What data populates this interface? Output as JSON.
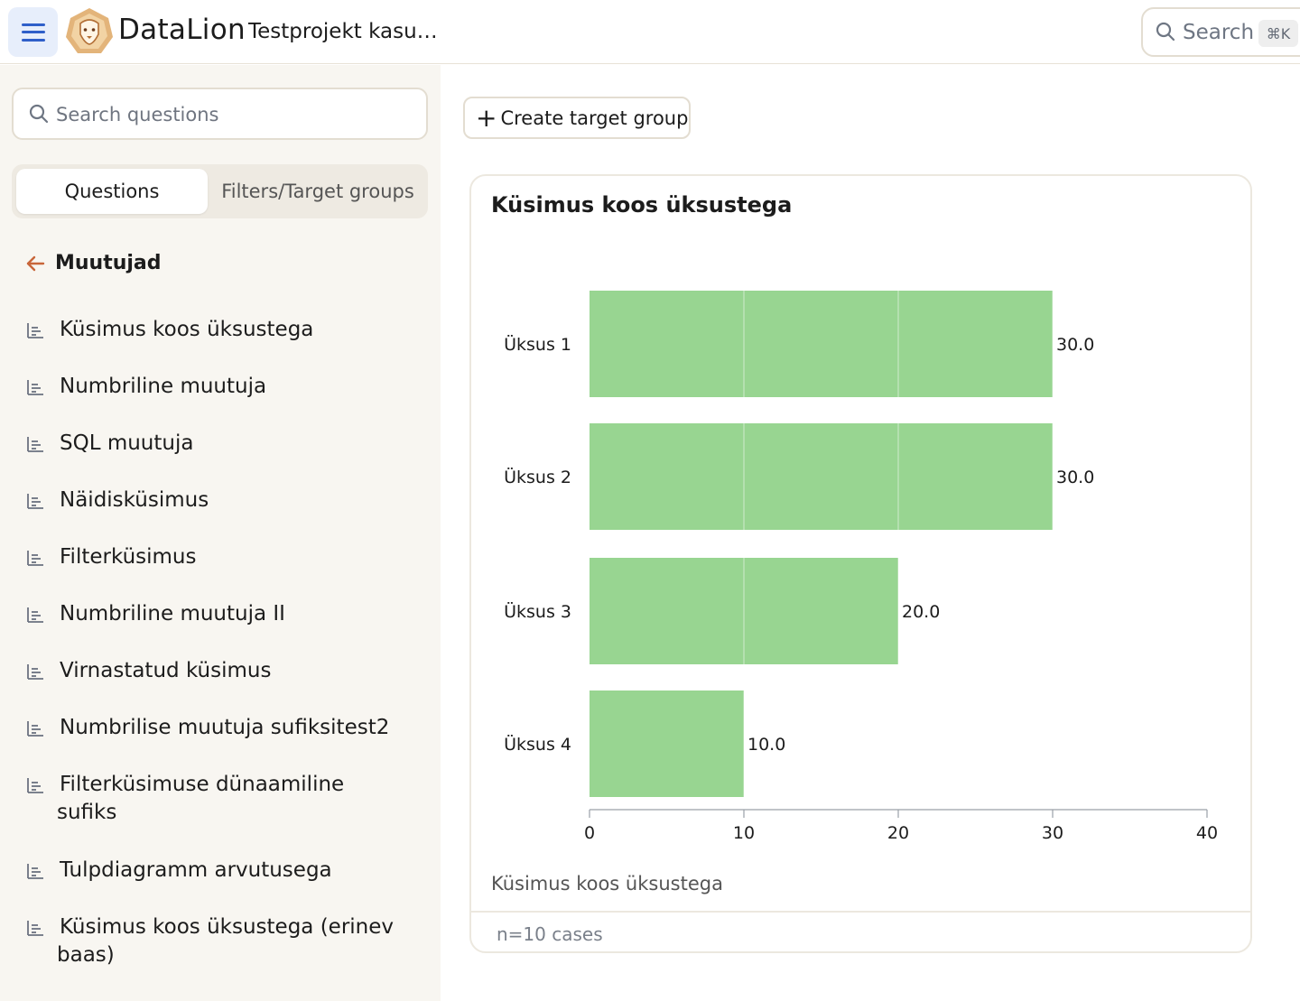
{
  "header": {
    "brand": "DataLion",
    "project": "Testprojekt kasu…",
    "search_label": "Search",
    "search_shortcut": "⌘K"
  },
  "sidebar": {
    "search_placeholder": "Search questions",
    "tabs": [
      {
        "label": "Questions",
        "active": true
      },
      {
        "label": "Filters/Target groups",
        "active": false
      }
    ],
    "section_title": "Muutujad",
    "questions": [
      {
        "line1": "Küsimus koos üksustega",
        "line2": ""
      },
      {
        "line1": "Numbriline muutuja",
        "line2": ""
      },
      {
        "line1": "SQL muutuja",
        "line2": ""
      },
      {
        "line1": "Näidisküsimus",
        "line2": ""
      },
      {
        "line1": "Filterküsimus",
        "line2": ""
      },
      {
        "line1": "Numbriline muutuja II",
        "line2": ""
      },
      {
        "line1": "Virnastatud küsimus",
        "line2": ""
      },
      {
        "line1": "Numbrilise muutuja sufiksitest2",
        "line2": ""
      },
      {
        "line1": "Filterküsimuse dünaamiline",
        "line2": "sufiks"
      },
      {
        "line1": "Tulpdiagramm arvutusega",
        "line2": ""
      },
      {
        "line1": "Küsimus koos üksustega (erinev",
        "line2": "baas)"
      }
    ]
  },
  "main": {
    "create_button": "Create target group",
    "card_title": "Küsimus koos üksustega",
    "caption": "Küsimus koos üksustega",
    "footer": "n=10 cases"
  },
  "colors": {
    "bar": "#98d591",
    "accent": "#2f5fc9",
    "back_arrow": "#c8663a"
  },
  "chart_data": {
    "type": "bar",
    "orientation": "horizontal",
    "title": "Küsimus koos üksustega",
    "categories": [
      "Üksus 1",
      "Üksus 2",
      "Üksus 3",
      "Üksus 4"
    ],
    "values": [
      30.0,
      30.0,
      20.0,
      10.0
    ],
    "value_labels": [
      "30.0",
      "30.0",
      "20.0",
      "10.0"
    ],
    "xlim": [
      0,
      40
    ],
    "xticks": [
      0,
      10,
      20,
      30,
      40
    ],
    "grid": true
  }
}
